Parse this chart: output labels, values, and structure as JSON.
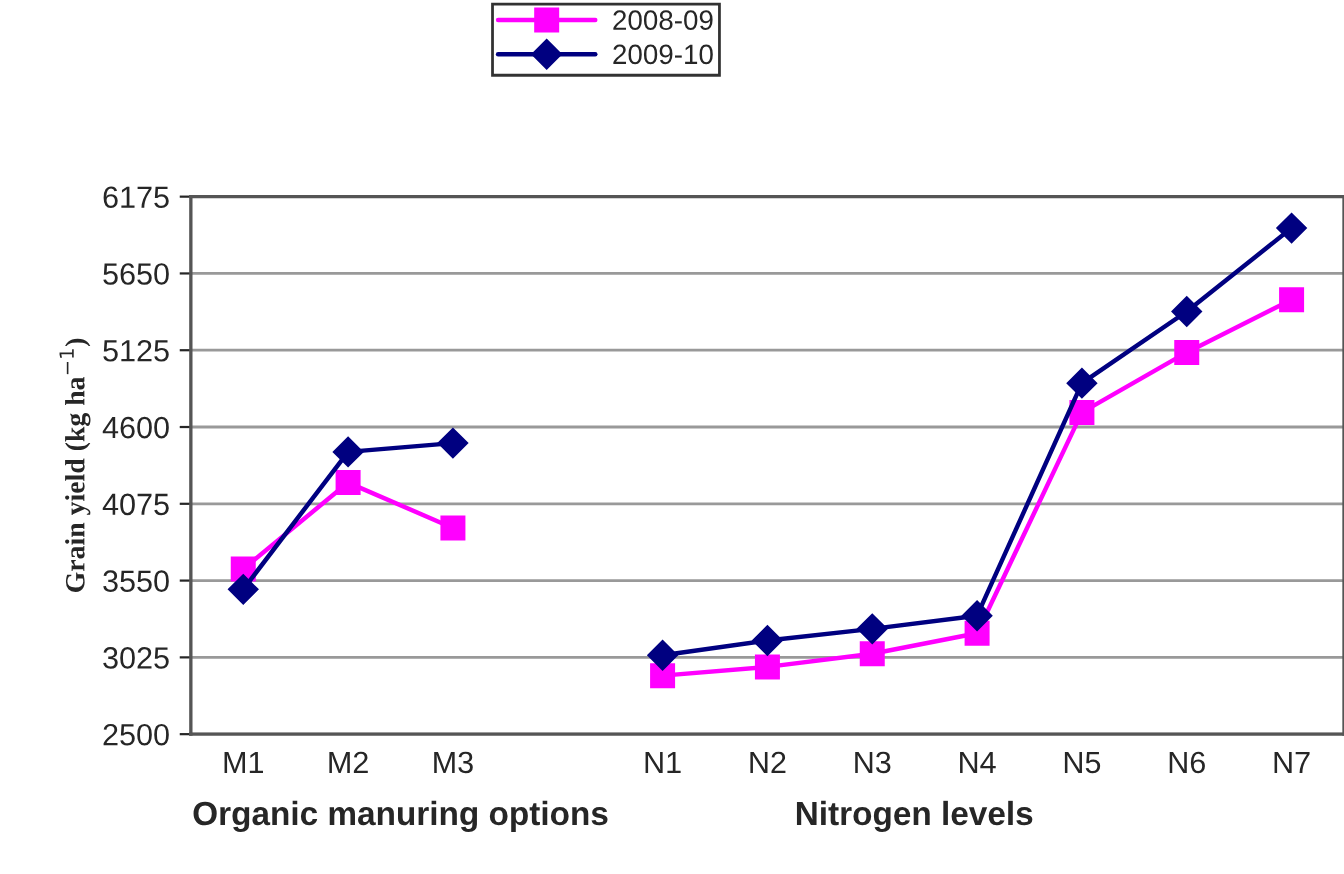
{
  "chart_data": {
    "type": "line",
    "ylabel": "Grain yield (kg ha$^{−1}$)",
    "categories": [
      "M1",
      "M2",
      "M3",
      null,
      "N1",
      "N2",
      "N3",
      "N4",
      "N5",
      "N6",
      "N7"
    ],
    "series": [
      {
        "name": "2008-09",
        "color": "#ff00ff",
        "marker": "square",
        "values": [
          3630,
          4220,
          3910,
          null,
          2900,
          2960,
          3050,
          3190,
          4700,
          5110,
          5470
        ]
      },
      {
        "name": "2009-10",
        "color": "#000080",
        "marker": "diamond",
        "values": [
          3490,
          4430,
          4490,
          null,
          3040,
          3140,
          3220,
          3310,
          4900,
          5390,
          5960
        ]
      }
    ],
    "ylim": [
      2500,
      6175
    ],
    "yticks": [
      2500,
      3025,
      3550,
      4075,
      4600,
      5125,
      5650,
      6175
    ],
    "grid": "y",
    "legend": "top",
    "line_style": "solid",
    "annotations": [
      "Organic manuring options",
      "Nitrogen levels"
    ]
  }
}
